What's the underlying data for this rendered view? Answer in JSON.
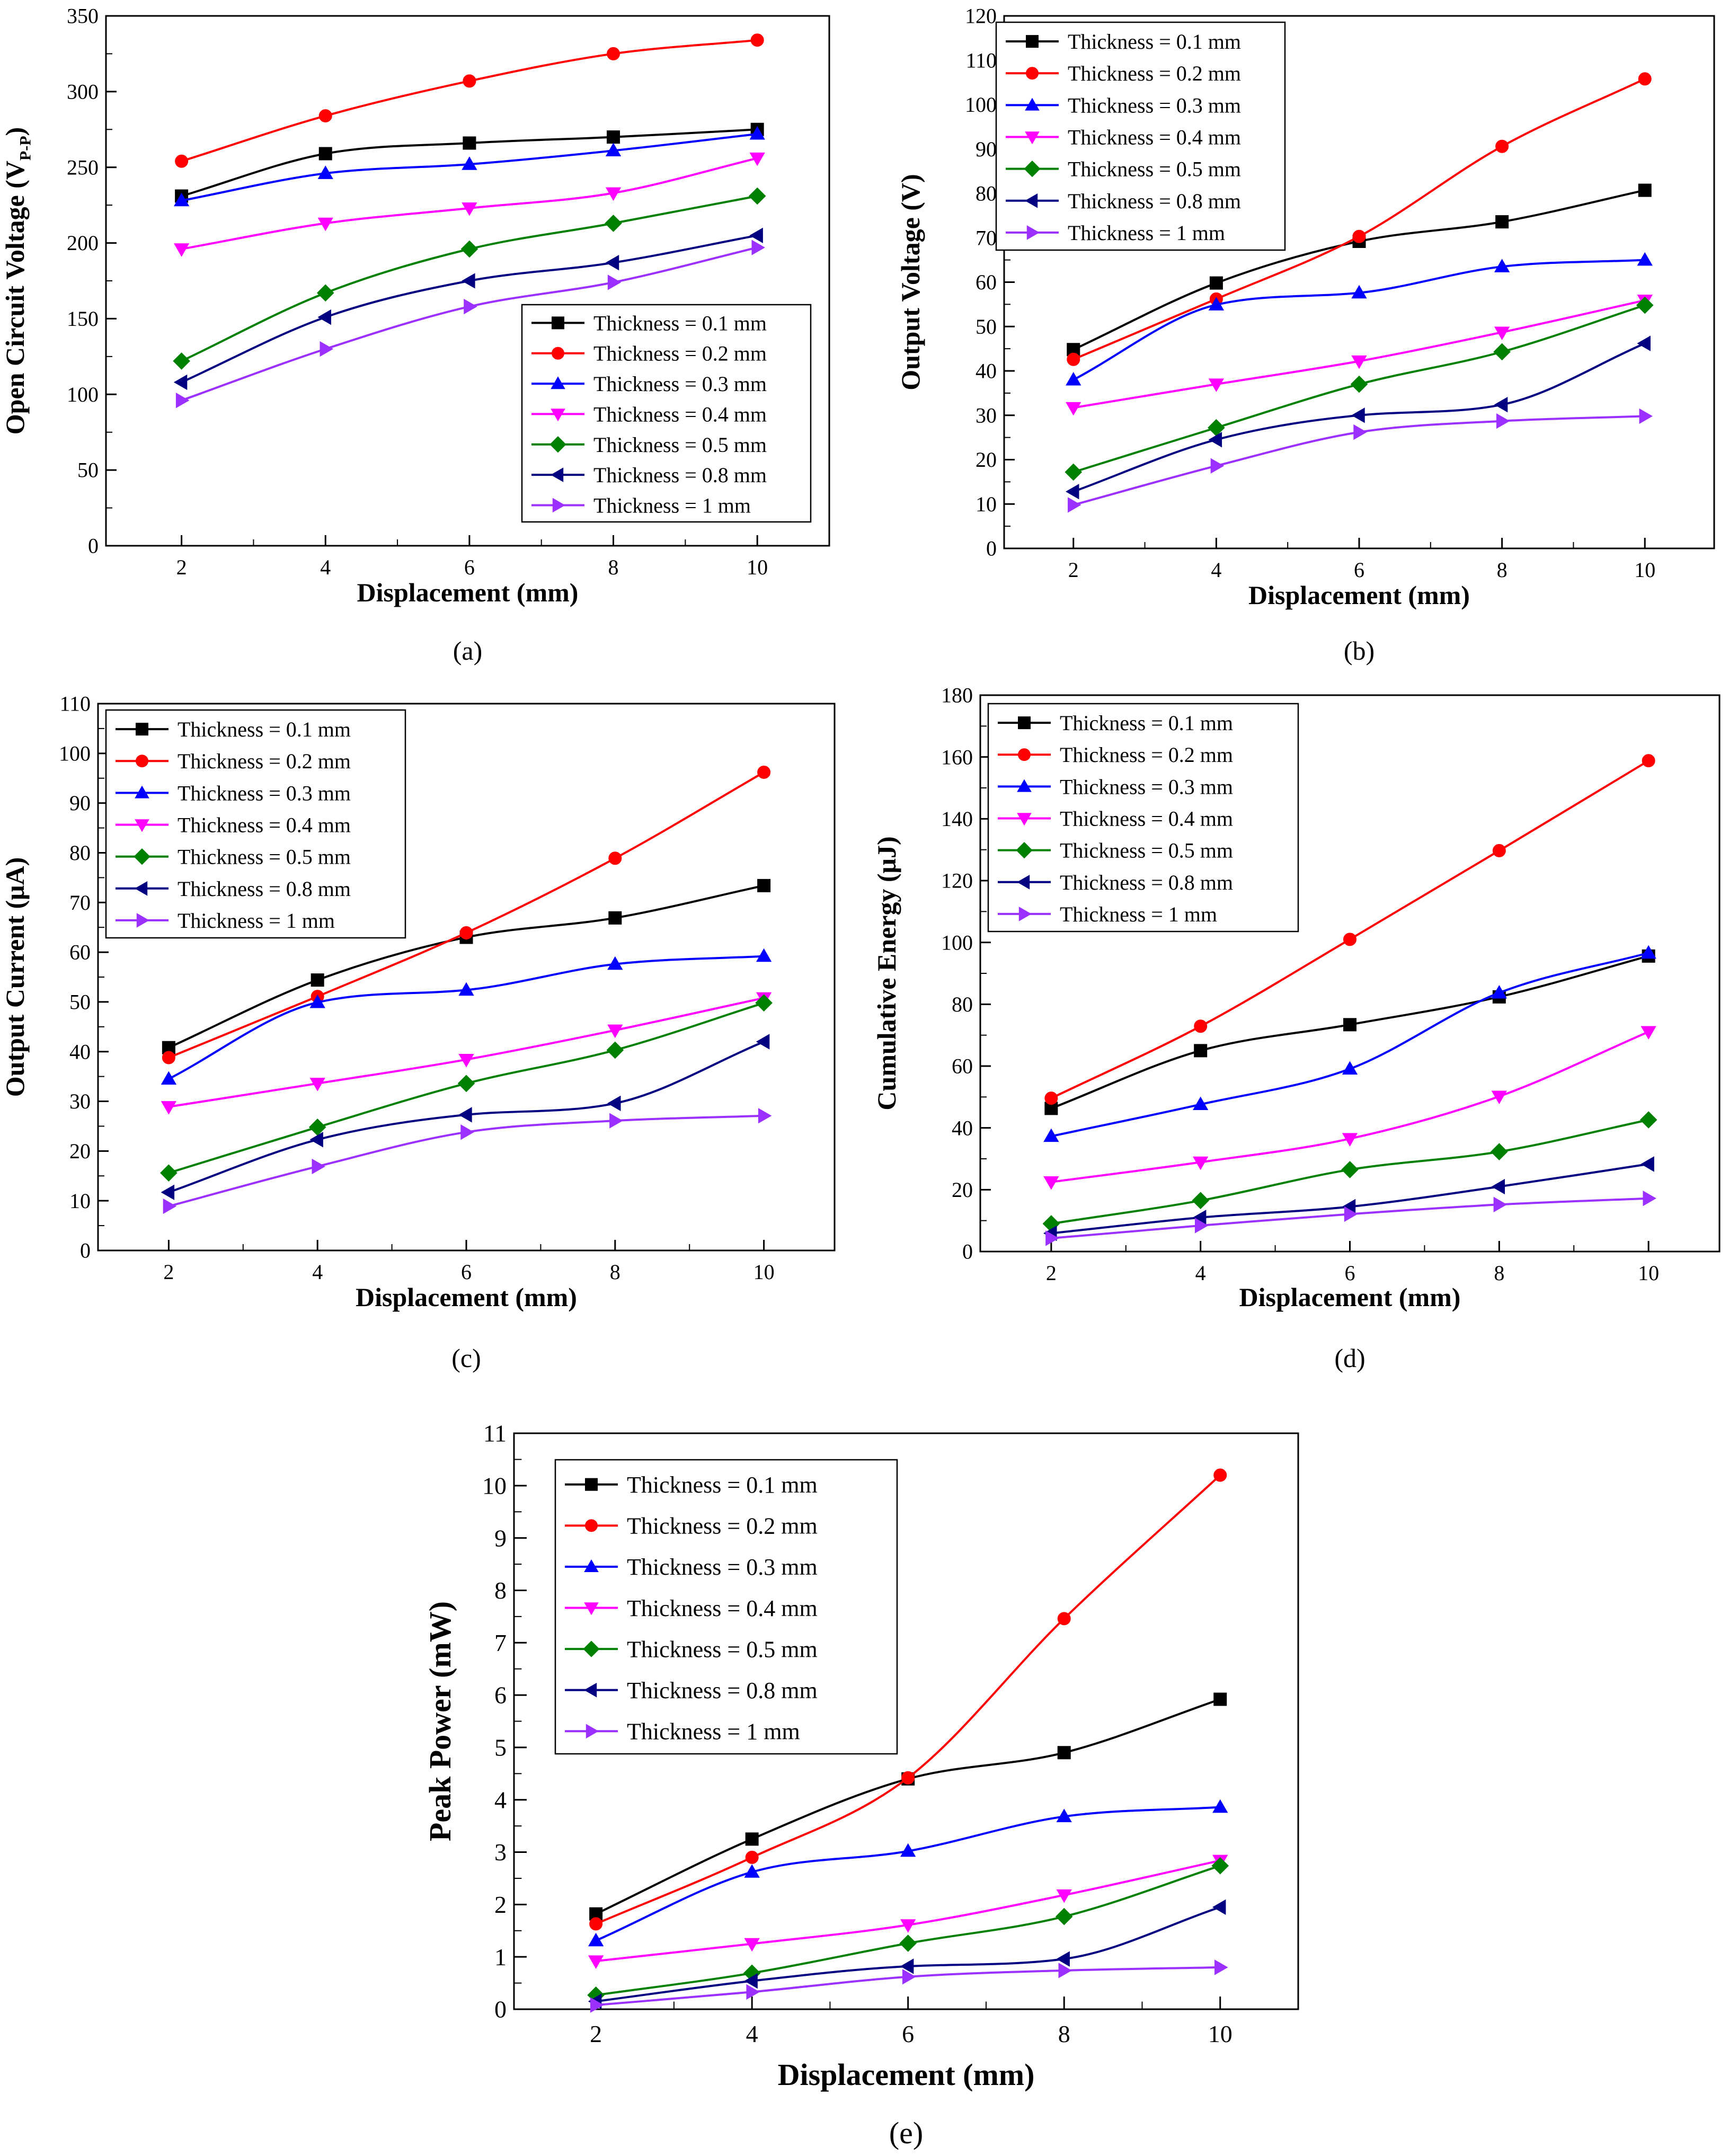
{
  "legend_labels": [
    "Thickness = 0.1 mm",
    "Thickness = 0.2 mm",
    "Thickness = 0.3 mm",
    "Thickness = 0.4 mm",
    "Thickness = 0.5 mm",
    "Thickness = 0.8 mm",
    "Thickness = 1 mm"
  ],
  "series_colors": [
    "#000000",
    "#ff0000",
    "#0000ff",
    "#ff00ff",
    "#008000",
    "#000080",
    "#9b30ff"
  ],
  "series_markers": [
    "square-marker",
    "circle-marker",
    "triangle-up-marker",
    "triangle-down-marker",
    "diamond-marker",
    "triangle-left-marker",
    "triangle-right-marker"
  ],
  "chart_data": [
    {
      "type": "line",
      "panel_label": "(a)",
      "xlabel": "Displacement (mm)",
      "ylabel": "Open Circuit Voltage (V",
      "ylabel_sub": "P-P",
      "ylabel_end": ")",
      "x": [
        2,
        4,
        6,
        8,
        10
      ],
      "xlim": [
        0.95,
        11
      ],
      "xticks": [
        2,
        4,
        6,
        8,
        10
      ],
      "ylim": [
        0,
        350
      ],
      "yticks": [
        0,
        50,
        100,
        150,
        200,
        250,
        300,
        350
      ],
      "legend_position": "bottom-right",
      "series": [
        {
          "name": "Thickness = 0.1 mm",
          "values": [
            231,
            259,
            266,
            270,
            275
          ]
        },
        {
          "name": "Thickness = 0.2 mm",
          "values": [
            254,
            284,
            307,
            325,
            334
          ]
        },
        {
          "name": "Thickness = 0.3 mm",
          "values": [
            228,
            246,
            252,
            261,
            272
          ]
        },
        {
          "name": "Thickness = 0.4 mm",
          "values": [
            196,
            213,
            223,
            233,
            256
          ]
        },
        {
          "name": "Thickness = 0.5 mm",
          "values": [
            122,
            167,
            196,
            213,
            231
          ]
        },
        {
          "name": "Thickness = 0.8 mm",
          "values": [
            108,
            151,
            175,
            187,
            205
          ]
        },
        {
          "name": "Thickness = 1 mm",
          "values": [
            96,
            130,
            158,
            174,
            197
          ]
        }
      ]
    },
    {
      "type": "line",
      "panel_label": "(b)",
      "xlabel": "Displacement (mm)",
      "ylabel": "Output Voltage (V)",
      "x": [
        2,
        4,
        6,
        8,
        10
      ],
      "xlim": [
        1.03,
        10.97
      ],
      "xticks": [
        2,
        4,
        6,
        8,
        10
      ],
      "ylim": [
        0,
        120
      ],
      "yticks": [
        0,
        10,
        20,
        30,
        40,
        50,
        60,
        70,
        80,
        90,
        100,
        110,
        120
      ],
      "legend_position": "top-left",
      "series": [
        {
          "name": "Thickness = 0.1 mm",
          "values": [
            44.8,
            59.8,
            69.2,
            73.6,
            80.7
          ]
        },
        {
          "name": "Thickness = 0.2 mm",
          "values": [
            42.6,
            56.2,
            70.3,
            90.6,
            105.8
          ]
        },
        {
          "name": "Thickness = 0.3 mm",
          "values": [
            38,
            54.9,
            57.6,
            63.5,
            65
          ]
        },
        {
          "name": "Thickness = 0.4 mm",
          "values": [
            31.7,
            37,
            42.2,
            48.7,
            55.9
          ]
        },
        {
          "name": "Thickness = 0.5 mm",
          "values": [
            17.2,
            27.2,
            37,
            44.3,
            54.8
          ]
        },
        {
          "name": "Thickness = 0.8 mm",
          "values": [
            12.8,
            24.5,
            30,
            32.4,
            46.2
          ]
        },
        {
          "name": "Thickness = 1 mm",
          "values": [
            9.8,
            18.6,
            26.2,
            28.7,
            29.8
          ]
        }
      ]
    },
    {
      "type": "line",
      "panel_label": "(c)",
      "xlabel": "Displacement (mm)",
      "ylabel": "Output Current (μA)",
      "x": [
        2,
        4,
        6,
        8,
        10
      ],
      "xlim": [
        1.05,
        10.95
      ],
      "xticks": [
        2,
        4,
        6,
        8,
        10
      ],
      "ylim": [
        0,
        110
      ],
      "yticks": [
        0,
        10,
        20,
        30,
        40,
        50,
        60,
        70,
        80,
        90,
        100,
        110
      ],
      "legend_position": "top-left",
      "series": [
        {
          "name": "Thickness = 0.1 mm",
          "values": [
            40.8,
            54.4,
            63,
            66.9,
            73.4
          ]
        },
        {
          "name": "Thickness = 0.2 mm",
          "values": [
            38.8,
            51.1,
            63.9,
            78.9,
            96.2
          ]
        },
        {
          "name": "Thickness = 0.3 mm",
          "values": [
            34.5,
            49.9,
            52.4,
            57.6,
            59.2
          ]
        },
        {
          "name": "Thickness = 0.4 mm",
          "values": [
            28.9,
            33.6,
            38.4,
            44.3,
            50.8
          ]
        },
        {
          "name": "Thickness = 0.5 mm",
          "values": [
            15.6,
            24.8,
            33.6,
            40.3,
            49.8
          ]
        },
        {
          "name": "Thickness = 0.8 mm",
          "values": [
            11.7,
            22.3,
            27.3,
            29.6,
            42
          ]
        },
        {
          "name": "Thickness = 1 mm",
          "values": [
            8.9,
            16.9,
            23.8,
            26.1,
            27.1
          ]
        }
      ]
    },
    {
      "type": "line",
      "panel_label": "(d)",
      "xlabel": "Displacement (mm)",
      "ylabel": "Cumulative Energy (μJ)",
      "x": [
        2,
        4,
        6,
        8,
        10
      ],
      "xlim": [
        1.05,
        10.95
      ],
      "xticks": [
        2,
        4,
        6,
        8,
        10
      ],
      "ylim": [
        0,
        180
      ],
      "yticks": [
        0,
        20,
        40,
        60,
        80,
        100,
        120,
        140,
        160,
        180
      ],
      "legend_position": "top-left",
      "series": [
        {
          "name": "Thickness = 0.1 mm",
          "values": [
            46.3,
            65,
            73.4,
            82.4,
            95.6
          ]
        },
        {
          "name": "Thickness = 0.2 mm",
          "values": [
            49.6,
            72.9,
            101,
            129.7,
            158.8
          ]
        },
        {
          "name": "Thickness = 0.3 mm",
          "values": [
            37.3,
            47.6,
            59.1,
            83.7,
            96.6
          ]
        },
        {
          "name": "Thickness = 0.4 mm",
          "values": [
            22.5,
            28.9,
            36.5,
            50.2,
            71.1
          ]
        },
        {
          "name": "Thickness = 0.5 mm",
          "values": [
            9,
            16.5,
            26.5,
            32.3,
            42.6
          ]
        },
        {
          "name": "Thickness = 0.8 mm",
          "values": [
            5.9,
            11,
            14.5,
            21,
            28.3
          ]
        },
        {
          "name": "Thickness = 1 mm",
          "values": [
            4.3,
            8.4,
            12.1,
            15.2,
            17.2
          ]
        }
      ]
    },
    {
      "type": "line",
      "panel_label": "(e)",
      "xlabel": "Displacement (mm)",
      "ylabel": "Peak Power (mW)",
      "x": [
        2,
        4,
        6,
        8,
        10
      ],
      "xlim": [
        0.95,
        11
      ],
      "xticks": [
        2,
        4,
        6,
        8,
        10
      ],
      "ylim": [
        0,
        11
      ],
      "yticks": [
        0,
        1,
        2,
        3,
        4,
        5,
        6,
        7,
        8,
        9,
        10,
        11
      ],
      "legend_position": "top-left",
      "series": [
        {
          "name": "Thickness = 0.1 mm",
          "values": [
            1.82,
            3.25,
            4.4,
            4.9,
            5.92
          ]
        },
        {
          "name": "Thickness = 0.2 mm",
          "values": [
            1.63,
            2.9,
            4.42,
            7.46,
            10.2
          ]
        },
        {
          "name": "Thickness = 0.3 mm",
          "values": [
            1.31,
            2.62,
            3.02,
            3.68,
            3.86
          ]
        },
        {
          "name": "Thickness = 0.4 mm",
          "values": [
            0.92,
            1.25,
            1.61,
            2.18,
            2.84
          ]
        },
        {
          "name": "Thickness = 0.5 mm",
          "values": [
            0.27,
            0.69,
            1.26,
            1.77,
            2.74
          ]
        },
        {
          "name": "Thickness = 0.8 mm",
          "values": [
            0.15,
            0.54,
            0.82,
            0.96,
            1.95
          ]
        },
        {
          "name": "Thickness = 1 mm",
          "values": [
            0.08,
            0.33,
            0.62,
            0.74,
            0.8
          ]
        }
      ]
    }
  ]
}
